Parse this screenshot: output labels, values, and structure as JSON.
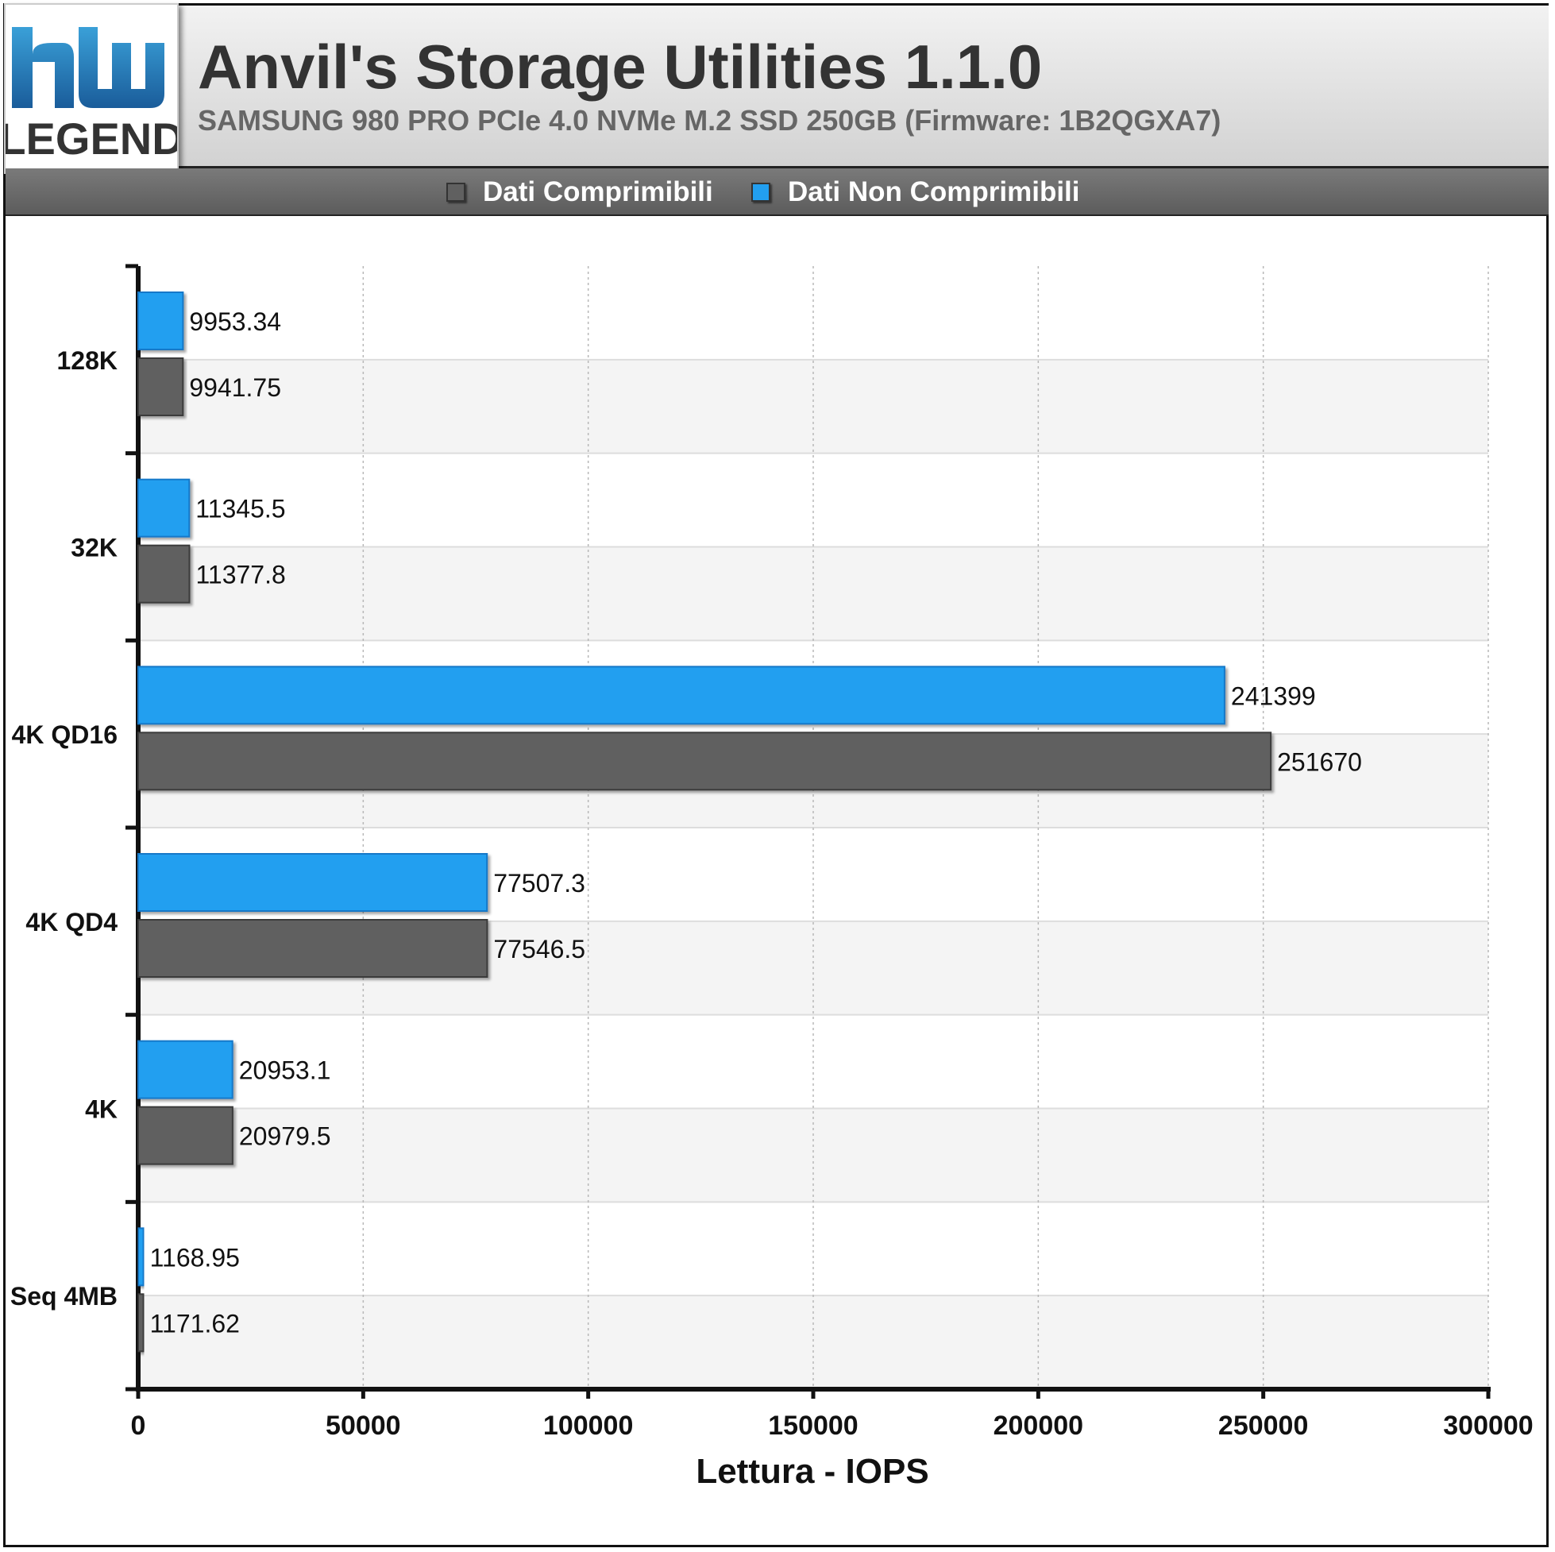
{
  "header": {
    "title": "Anvil's Storage Utilities 1.1.0",
    "subtitle": "SAMSUNG 980 PRO PCIe 4.0 NVMe M.2 SSD 250GB (Firmware: 1B2QGXA7)",
    "logo_text": "LEGEND"
  },
  "legend": [
    {
      "label": "Dati Comprimibili",
      "color": "#606060"
    },
    {
      "label": "Dati Non Comprimibili",
      "color": "#229ff0"
    }
  ],
  "chart_data": {
    "type": "bar",
    "orientation": "horizontal",
    "categories": [
      "128K",
      "32K",
      "4K QD16",
      "4K QD4",
      "4K",
      "Seq 4MB"
    ],
    "series": [
      {
        "name": "Dati Non Comprimibili",
        "color": "#229ff0",
        "values": [
          9953.34,
          11345.5,
          241399,
          77507.3,
          20953.1,
          1168.95
        ],
        "labels": [
          "9953.34",
          "11345.5",
          "241399",
          "77507.3",
          "20953.1",
          "1168.95"
        ]
      },
      {
        "name": "Dati Comprimibili",
        "color": "#606060",
        "values": [
          9941.75,
          11377.8,
          251670,
          77546.5,
          20979.5,
          1171.62
        ],
        "labels": [
          "9941.75",
          "11377.8",
          "251670",
          "77546.5",
          "20979.5",
          "1171.62"
        ]
      }
    ],
    "xlabel": "Lettura - IOPS",
    "xlim": [
      0,
      300000
    ],
    "xticks": [
      "0",
      "50000",
      "100000",
      "150000",
      "200000",
      "250000",
      "300000"
    ],
    "grid": true,
    "legend_position": "top"
  }
}
